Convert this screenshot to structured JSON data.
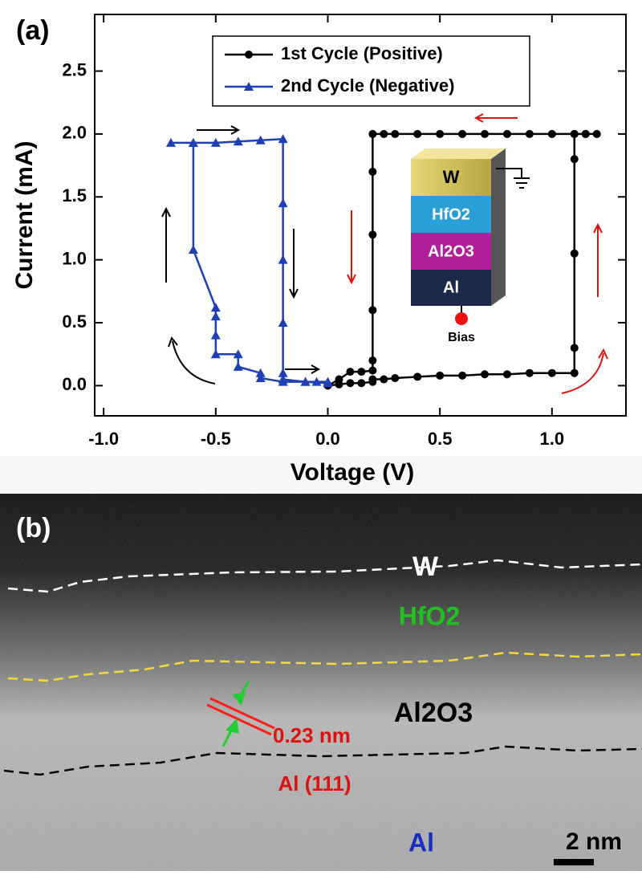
{
  "chart_data": {
    "type": "line",
    "panel_label": "(a)",
    "xlabel": "Voltage (V)",
    "ylabel": "Current (mA)",
    "xlim": [
      -1.04,
      1.33
    ],
    "ylim": [
      -0.24,
      2.95
    ],
    "xticks": [
      {
        "value": -1,
        "label": "-1.0"
      },
      {
        "value": -0.5,
        "label": "-0.5"
      },
      {
        "value": 0,
        "label": "0.0"
      },
      {
        "value": 0.5,
        "label": "0.5"
      },
      {
        "value": 1,
        "label": "1.0"
      }
    ],
    "yticks": [
      {
        "value": 0,
        "label": "0.0"
      },
      {
        "value": 0.5,
        "label": "0.5"
      },
      {
        "value": 1,
        "label": "1.0"
      },
      {
        "value": 1.5,
        "label": "1.5"
      },
      {
        "value": 2,
        "label": "2.0"
      },
      {
        "value": 2.5,
        "label": "2.5"
      }
    ],
    "legend": "top",
    "series": [
      {
        "name": "1st Cycle (Positive)",
        "color": "#000000",
        "marker": "circle",
        "x": [
          0,
          0.05,
          0.1,
          0.15,
          0.2,
          0.2,
          0.25,
          0.3,
          0.4,
          0.5,
          0.6,
          0.7,
          0.8,
          0.9,
          1.0,
          1.1,
          1.1,
          1.1,
          1.1,
          1.1,
          1.15,
          1.2,
          1.15,
          1.1,
          1.0,
          0.9,
          0.8,
          0.7,
          0.6,
          0.5,
          0.4,
          0.3,
          0.25,
          0.2,
          0.2,
          0.2,
          0.2,
          0.2,
          0.2,
          0.15,
          0.1,
          0.05,
          0
        ],
        "values": [
          0,
          0.01,
          0.02,
          0.02,
          0.03,
          0.05,
          0.05,
          0.06,
          0.07,
          0.08,
          0.08,
          0.09,
          0.09,
          0.1,
          0.1,
          0.1,
          0.3,
          1.05,
          1.8,
          2.0,
          2.0,
          2.0,
          2.0,
          2.0,
          2.0,
          2.0,
          2.0,
          2.0,
          2.0,
          2.0,
          2.0,
          2.0,
          2.0,
          2.0,
          1.7,
          1.2,
          0.6,
          0.2,
          0.12,
          0.11,
          0.11,
          0.05,
          0
        ]
      },
      {
        "name": "2nd Cycle (Negative)",
        "color": "#1f3fb5",
        "marker": "triangle",
        "x": [
          0,
          -0.05,
          -0.1,
          -0.2,
          -0.3,
          -0.3,
          -0.4,
          -0.4,
          -0.5,
          -0.5,
          -0.5,
          -0.5,
          -0.6,
          -0.6,
          -0.7,
          -0.6,
          -0.5,
          -0.4,
          -0.3,
          -0.2,
          -0.2,
          -0.2,
          -0.2,
          -0.2,
          -0.2,
          -0.1,
          0
        ],
        "values": [
          0.03,
          0.03,
          0.03,
          0.03,
          0.06,
          0.1,
          0.15,
          0.25,
          0.25,
          0.4,
          0.55,
          0.62,
          1.08,
          1.93,
          1.93,
          1.93,
          1.93,
          1.94,
          1.95,
          1.96,
          1.45,
          1.0,
          0.5,
          0.1,
          0.05,
          0.03,
          0.02
        ]
      }
    ]
  },
  "inset": {
    "layers": [
      "W",
      "HfO2",
      "Al2O3",
      "Al"
    ],
    "bias": "Bias"
  },
  "tem_image": {
    "panel_label": "(b)",
    "labels": {
      "w": "W",
      "hfo2": "HfO2",
      "al2o3": "Al2O3",
      "spacing": "0.23 nm",
      "plane": "Al (111)",
      "al": "Al"
    },
    "scale_bar": "2 nm"
  }
}
